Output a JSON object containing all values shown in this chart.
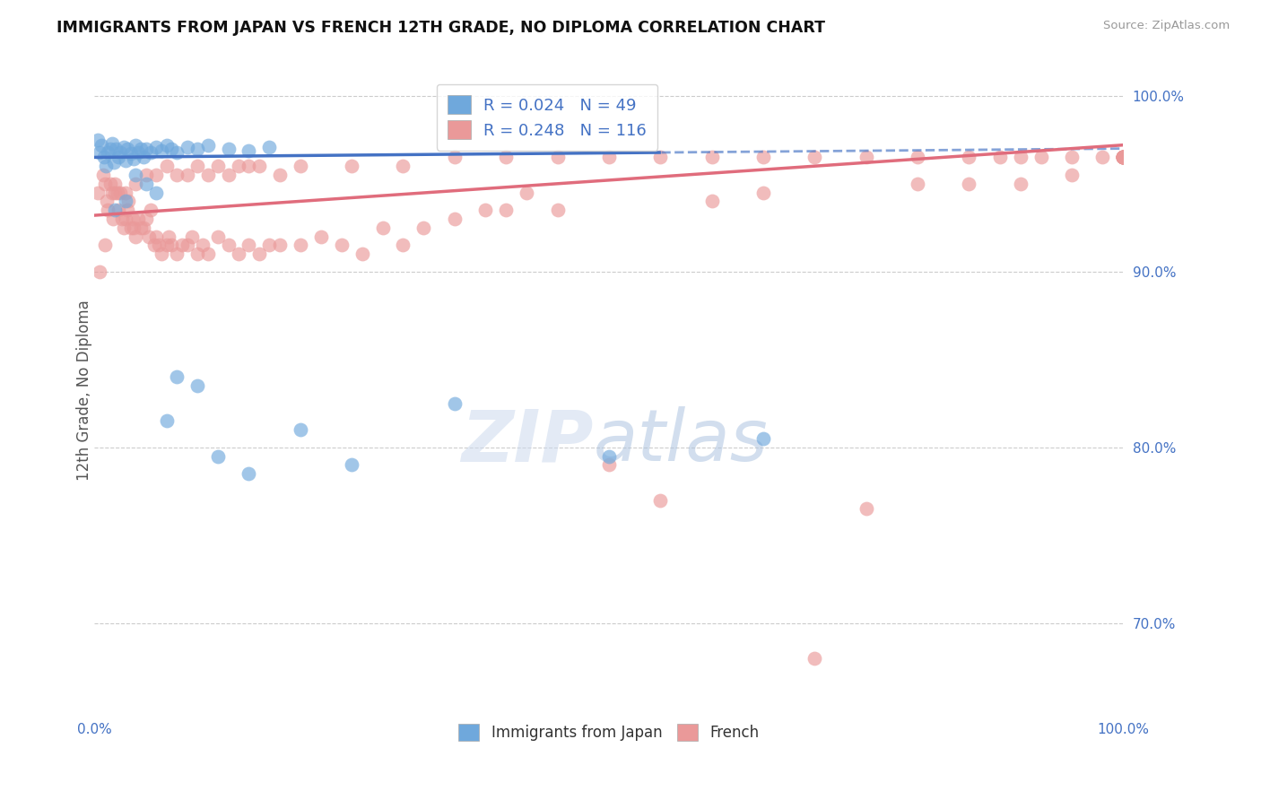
{
  "title": "IMMIGRANTS FROM JAPAN VS FRENCH 12TH GRADE, NO DIPLOMA CORRELATION CHART",
  "source": "Source: ZipAtlas.com",
  "ylabel": "12th Grade, No Diploma",
  "legend_labels": [
    "Immigrants from Japan",
    "French"
  ],
  "legend_R": [
    0.024,
    0.248
  ],
  "legend_N": [
    49,
    116
  ],
  "blue_color": "#6fa8dc",
  "pink_color": "#ea9999",
  "blue_line_color": "#4472c4",
  "pink_line_color": "#e06c7c",
  "right_yticks": [
    70.0,
    80.0,
    90.0,
    100.0
  ],
  "ylim_min": 65.0,
  "ylim_max": 101.5,
  "xlim_min": 0.0,
  "xlim_max": 100.0,
  "blue_line_solid_end": 55.0,
  "japan_x": [
    0.3,
    0.5,
    0.7,
    0.9,
    1.1,
    1.3,
    1.5,
    1.7,
    1.9,
    2.1,
    2.3,
    2.5,
    2.8,
    3.0,
    3.2,
    3.5,
    3.8,
    4.0,
    4.2,
    4.5,
    4.8,
    5.0,
    5.5,
    6.0,
    6.5,
    7.0,
    7.5,
    8.0,
    9.0,
    10.0,
    11.0,
    13.0,
    15.0,
    17.0,
    2.0,
    3.0,
    4.0,
    5.0,
    6.0,
    7.0,
    8.0,
    10.0,
    12.0,
    15.0,
    20.0,
    25.0,
    35.0,
    50.0,
    65.0
  ],
  "japan_y": [
    97.5,
    96.8,
    97.2,
    96.5,
    96.0,
    96.8,
    97.0,
    97.3,
    96.2,
    97.0,
    96.5,
    96.8,
    97.1,
    96.3,
    97.0,
    96.7,
    96.4,
    97.2,
    96.8,
    97.0,
    96.5,
    97.0,
    96.8,
    97.1,
    96.9,
    97.2,
    97.0,
    96.8,
    97.1,
    97.0,
    97.2,
    97.0,
    96.9,
    97.1,
    93.5,
    94.0,
    95.5,
    95.0,
    94.5,
    81.5,
    84.0,
    83.5,
    79.5,
    78.5,
    81.0,
    79.0,
    82.5,
    79.5,
    80.5
  ],
  "french_x": [
    0.3,
    0.5,
    0.8,
    1.0,
    1.2,
    1.3,
    1.5,
    1.7,
    1.8,
    2.0,
    2.2,
    2.3,
    2.5,
    2.7,
    2.8,
    3.0,
    3.2,
    3.3,
    3.5,
    3.7,
    3.8,
    4.0,
    4.2,
    4.5,
    4.8,
    5.0,
    5.3,
    5.5,
    5.8,
    6.0,
    6.2,
    6.5,
    7.0,
    7.2,
    7.5,
    8.0,
    8.5,
    9.0,
    9.5,
    10.0,
    10.5,
    11.0,
    12.0,
    13.0,
    14.0,
    15.0,
    16.0,
    17.0,
    18.0,
    20.0,
    22.0,
    24.0,
    26.0,
    28.0,
    30.0,
    32.0,
    35.0,
    38.0,
    40.0,
    42.0,
    45.0,
    50.0,
    55.0,
    60.0,
    65.0,
    70.0,
    75.0,
    80.0,
    85.0,
    90.0,
    95.0,
    100.0,
    1.0,
    2.0,
    3.0,
    4.0,
    5.0,
    6.0,
    7.0,
    8.0,
    9.0,
    10.0,
    11.0,
    12.0,
    13.0,
    14.0,
    15.0,
    16.0,
    18.0,
    20.0,
    25.0,
    30.0,
    35.0,
    40.0,
    45.0,
    50.0,
    55.0,
    60.0,
    65.0,
    70.0,
    75.0,
    80.0,
    85.0,
    88.0,
    90.0,
    92.0,
    95.0,
    98.0,
    100.0,
    100.0,
    100.0,
    100.0,
    100.0,
    100.0,
    100.0,
    100.0,
    100.0
  ],
  "french_y": [
    94.5,
    90.0,
    95.5,
    91.5,
    94.0,
    93.5,
    95.0,
    94.5,
    93.0,
    95.0,
    94.5,
    93.5,
    94.5,
    93.0,
    92.5,
    93.0,
    93.5,
    94.0,
    92.5,
    93.0,
    92.5,
    92.0,
    93.0,
    92.5,
    92.5,
    93.0,
    92.0,
    93.5,
    91.5,
    92.0,
    91.5,
    91.0,
    91.5,
    92.0,
    91.5,
    91.0,
    91.5,
    91.5,
    92.0,
    91.0,
    91.5,
    91.0,
    92.0,
    91.5,
    91.0,
    91.5,
    91.0,
    91.5,
    91.5,
    91.5,
    92.0,
    91.5,
    91.0,
    92.5,
    91.5,
    92.5,
    93.0,
    93.5,
    93.5,
    94.5,
    93.5,
    79.0,
    77.0,
    94.0,
    94.5,
    68.0,
    76.5,
    95.0,
    95.0,
    95.0,
    95.5,
    96.5,
    95.0,
    94.5,
    94.5,
    95.0,
    95.5,
    95.5,
    96.0,
    95.5,
    95.5,
    96.0,
    95.5,
    96.0,
    95.5,
    96.0,
    96.0,
    96.0,
    95.5,
    96.0,
    96.0,
    96.0,
    96.5,
    96.5,
    96.5,
    96.5,
    96.5,
    96.5,
    96.5,
    96.5,
    96.5,
    96.5,
    96.5,
    96.5,
    96.5,
    96.5,
    96.5,
    96.5,
    96.5,
    96.5,
    96.5,
    96.5,
    96.5,
    96.5,
    96.5,
    96.5,
    96.5
  ]
}
